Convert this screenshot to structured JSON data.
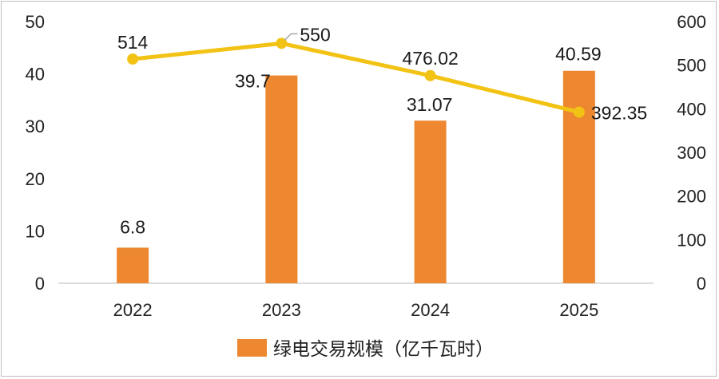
{
  "chart_data": {
    "type": "bar",
    "categories": [
      "2022",
      "2023",
      "2024",
      "2025"
    ],
    "series": [
      {
        "name": "绿电交易规模（亿千瓦时）",
        "type": "bar",
        "axis": "left",
        "color": "#ed8730",
        "values": [
          6.8,
          39.7,
          31.07,
          40.59
        ],
        "labels": [
          "6.8",
          "39.7",
          "31.07",
          "40.59"
        ]
      },
      {
        "name": "",
        "type": "line",
        "axis": "right",
        "color": "#f2c314",
        "values": [
          514,
          550,
          476.02,
          392.35
        ],
        "labels": [
          "514",
          "550",
          "476.02",
          "392.35"
        ]
      }
    ],
    "y_left": {
      "range": [
        0,
        50
      ],
      "ticks": [
        "0",
        "10",
        "20",
        "30",
        "40",
        "50"
      ]
    },
    "y_right": {
      "range": [
        0,
        600
      ],
      "ticks": [
        "0",
        "100",
        "200",
        "300",
        "400",
        "500",
        "600"
      ]
    },
    "title": "",
    "xlabel": "",
    "ylabel": "",
    "grid": false,
    "legend": "bottom"
  }
}
